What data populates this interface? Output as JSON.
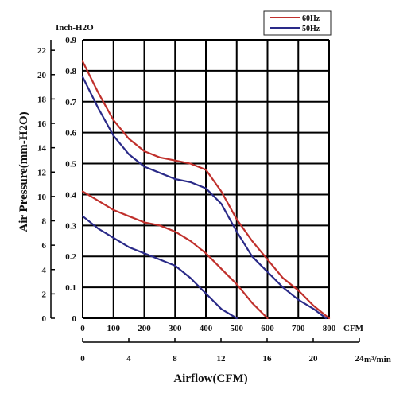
{
  "chart_data": {
    "type": "line",
    "title": "",
    "xlabel": "Airflow(CFM)",
    "ylabel": "Air Pressure(mm-H2O)",
    "y2label": "Inch-H2O",
    "x_unit": "CFM",
    "x2_unit": "m³/min",
    "xlim": [
      0,
      800
    ],
    "ylim": [
      0,
      0.9
    ],
    "x_ticks": [
      "0",
      "100",
      "200",
      "300",
      "400",
      "500",
      "600",
      "700",
      "800"
    ],
    "x2_ticks": [
      "0",
      "4",
      "8",
      "12",
      "16",
      "20",
      "24"
    ],
    "y_ticks_inch": [
      "0",
      "0.1",
      "0.2",
      "0.3",
      "0.4",
      "0.5",
      "0.6",
      "0.7",
      "0.8",
      "0.9"
    ],
    "y_ticks_mm": [
      "0",
      "2",
      "4",
      "6",
      "8",
      "10",
      "12",
      "14",
      "16",
      "18",
      "20",
      "22"
    ],
    "grid": true,
    "legend": "top-right",
    "series": [
      {
        "name": "60Hz",
        "color": "#c0302c",
        "curves": [
          {
            "x": [
              0,
              50,
              100,
              150,
              200,
              250,
              300,
              350,
              400,
              450,
              500,
              550,
              600,
              650,
              700,
              750,
              800
            ],
            "y": [
              0.83,
              0.73,
              0.64,
              0.58,
              0.54,
              0.52,
              0.51,
              0.5,
              0.48,
              0.41,
              0.32,
              0.25,
              0.19,
              0.13,
              0.09,
              0.04,
              0
            ]
          },
          {
            "x": [
              0,
              50,
              100,
              150,
              200,
              250,
              300,
              350,
              400,
              450,
              500,
              550,
              600
            ],
            "y": [
              0.41,
              0.38,
              0.35,
              0.33,
              0.31,
              0.3,
              0.28,
              0.25,
              0.21,
              0.16,
              0.11,
              0.05,
              0
            ]
          }
        ]
      },
      {
        "name": "50Hz",
        "color": "#2a2a88",
        "curves": [
          {
            "x": [
              0,
              50,
              100,
              150,
              200,
              250,
              300,
              350,
              400,
              450,
              500,
              550,
              600,
              650,
              700,
              750,
              790
            ],
            "y": [
              0.78,
              0.68,
              0.59,
              0.53,
              0.49,
              0.47,
              0.45,
              0.44,
              0.42,
              0.37,
              0.28,
              0.2,
              0.15,
              0.1,
              0.06,
              0.03,
              0
            ]
          },
          {
            "x": [
              0,
              50,
              100,
              150,
              200,
              250,
              300,
              350,
              400,
              450,
              500
            ],
            "y": [
              0.33,
              0.29,
              0.26,
              0.23,
              0.21,
              0.19,
              0.17,
              0.13,
              0.08,
              0.03,
              0
            ]
          }
        ]
      }
    ]
  }
}
